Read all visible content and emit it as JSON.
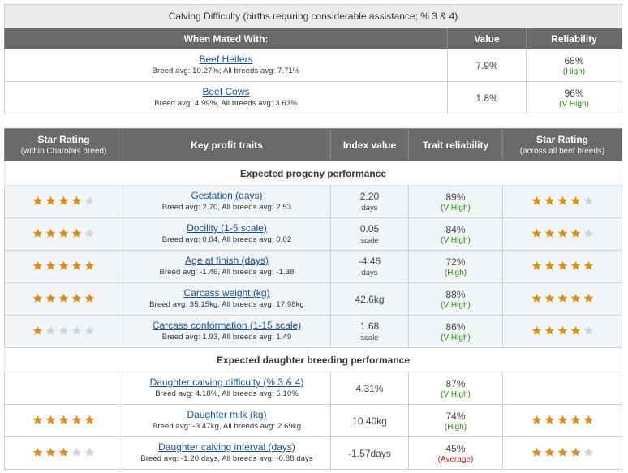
{
  "colors": {
    "star_on": "#d98f1e",
    "star_off": "#d4d4d4",
    "header_bg": "#6a6a6a",
    "link": "#1a4f8f",
    "reliability_green": "#2e8b16",
    "reliability_red": "#c41a1a"
  },
  "calving": {
    "title": "Calving Difficulty (births requring considerable assistance; % 3 & 4)",
    "headers": {
      "mated": "When Mated With:",
      "value": "Value",
      "reliability": "Reliability"
    },
    "rows": [
      {
        "name": "Beef Heifers",
        "avg": "Breed avg: 10.27%; All breeds avg: 7.71%",
        "value": "7.9%",
        "reliability": "68%",
        "rel_label": "(High)"
      },
      {
        "name": "Beef Cows",
        "avg": "Breed avg: 4.99%, All breeds avg: 3.63%",
        "value": "1.8%",
        "reliability": "96%",
        "rel_label": "(V High)"
      }
    ]
  },
  "traits": {
    "headers": {
      "star_rating": "Star Rating",
      "star_rating_sub": "(within Charolais breed)",
      "key_traits": "Key profit traits",
      "index_value": "Index value",
      "trait_reliability": "Trait reliability",
      "star_rating2": "Star Rating",
      "star_rating2_sub": "(across all beef breeds)"
    },
    "progeny_section": "Expected progeny performance",
    "progeny": [
      {
        "stars_within": 4,
        "name": "Gestation (days)",
        "avg": "Breed avg: 2.70, All breeds avg: 2.53",
        "value": "2.20",
        "unit": "days",
        "reliability": "89%",
        "rel_label": "(V High)",
        "rel_color": "green",
        "stars_across": 4
      },
      {
        "stars_within": 4,
        "name": "Docility (1-5 scale)",
        "avg": "Breed avg: 0.04, All breeds avg: 0.02",
        "value": "0.05",
        "unit": "scale",
        "reliability": "84%",
        "rel_label": "(V High)",
        "rel_color": "green",
        "stars_across": 4
      },
      {
        "stars_within": 5,
        "name": "Age at finish (days)",
        "avg": "Breed avg: -1.46, All breeds avg: -1.38",
        "value": "-4.46",
        "unit": "days",
        "reliability": "72%",
        "rel_label": "(High)",
        "rel_color": "green",
        "stars_across": 5
      },
      {
        "stars_within": 5,
        "name": "Carcass weight (kg)",
        "avg": "Breed avg: 35.15kg, All breeds avg: 17.98kg",
        "value": "42.6kg",
        "unit": "",
        "reliability": "88%",
        "rel_label": "(V High)",
        "rel_color": "green",
        "stars_across": 5
      },
      {
        "stars_within": 1,
        "name": "Carcass conformation (1-15 scale)",
        "avg": "Breed avg: 1.93, All breeds avg: 1.49",
        "value": "1.68",
        "unit": "scale",
        "reliability": "86%",
        "rel_label": "(V High)",
        "rel_color": "green",
        "stars_across": 4
      }
    ],
    "daughter_section": "Expected daughter breeding performance",
    "daughter": [
      {
        "stars_within": 0,
        "name": "Daughter calving difficulty (% 3 & 4)",
        "avg": "Breed avg: 4.18%, All breeds avg: 5.10%",
        "value": "4.31%",
        "unit": "",
        "reliability": "87%",
        "rel_label": "(V High)",
        "rel_color": "green",
        "stars_across": 0
      },
      {
        "stars_within": 5,
        "name": "Daughter milk (kg)",
        "avg": "Breed avg: -3.47kg, All breeds avg: 2.69kg",
        "value": "10.40kg",
        "unit": "",
        "reliability": "74%",
        "rel_label": "(High)",
        "rel_color": "green",
        "stars_across": 5
      },
      {
        "stars_within": 3,
        "name": "Daughter calving interval (days)",
        "avg": "Breed avg: -1.20 days, All breeds avg: -0.88 days",
        "value": "-1.57days",
        "unit": "",
        "reliability": "45%",
        "rel_label": "(Average)",
        "rel_color": "red",
        "stars_across": 4
      }
    ]
  }
}
